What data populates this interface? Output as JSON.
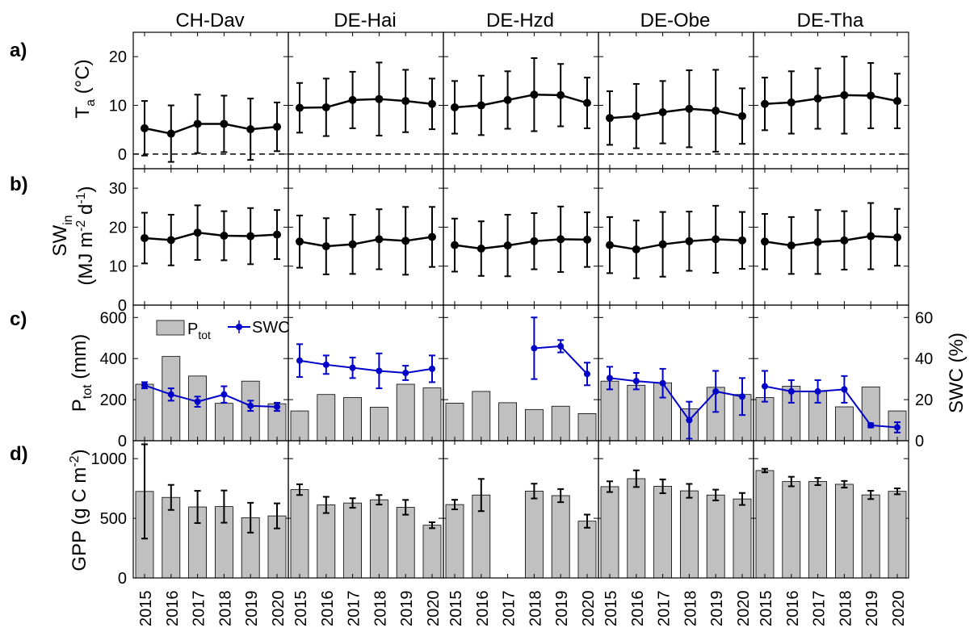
{
  "figure": {
    "sites": [
      "CH-Dav",
      "DE-Hai",
      "DE-Hzd",
      "DE-Obe",
      "DE-Tha"
    ],
    "years": [
      "2015",
      "2016",
      "2017",
      "2018",
      "2019",
      "2020"
    ],
    "row_labels": [
      "a)",
      "b)",
      "c)",
      "d)"
    ]
  },
  "chart_data": [
    {
      "type": "line",
      "panel": "a)",
      "ylabel": "T_a (°C)",
      "ylim": [
        -3,
        25
      ],
      "yticks": [
        0,
        10,
        20
      ],
      "reference_line": {
        "y": 0,
        "style": "dashed"
      },
      "x": [
        "2015",
        "2016",
        "2017",
        "2018",
        "2019",
        "2020"
      ],
      "series": [
        {
          "site": "CH-Dav",
          "values": [
            5.3,
            4.2,
            6.2,
            6.2,
            5.1,
            5.6
          ],
          "error": [
            5.6,
            5.8,
            6.0,
            5.8,
            6.3,
            5.0
          ]
        },
        {
          "site": "DE-Hai",
          "values": [
            9.5,
            9.6,
            11.1,
            11.3,
            10.9,
            10.3
          ],
          "error": [
            5.1,
            5.9,
            5.8,
            7.5,
            6.4,
            5.2
          ]
        },
        {
          "site": "DE-Hzd",
          "values": [
            9.6,
            10.0,
            11.1,
            12.2,
            12.1,
            10.5
          ],
          "error": [
            5.4,
            6.1,
            5.9,
            7.5,
            6.4,
            5.2
          ]
        },
        {
          "site": "DE-Obe",
          "values": [
            7.4,
            7.8,
            8.6,
            9.3,
            8.9,
            7.8
          ],
          "error": [
            5.5,
            6.6,
            6.4,
            7.9,
            8.4,
            5.7
          ]
        },
        {
          "site": "DE-Tha",
          "values": [
            10.3,
            10.6,
            11.4,
            12.1,
            12.0,
            10.9
          ],
          "error": [
            5.4,
            6.4,
            6.2,
            7.9,
            6.7,
            5.6
          ]
        }
      ]
    },
    {
      "type": "line",
      "panel": "b)",
      "ylabel": "SW_in (MJ m^-2 d^-1)",
      "ylim": [
        0,
        35
      ],
      "yticks": [
        0,
        10,
        20,
        30
      ],
      "x": [
        "2015",
        "2016",
        "2017",
        "2018",
        "2019",
        "2020"
      ],
      "series": [
        {
          "site": "CH-Dav",
          "values": [
            17.2,
            16.7,
            18.6,
            17.8,
            17.7,
            18.1
          ],
          "error": [
            6.5,
            6.5,
            7.0,
            6.3,
            7.2,
            6.3
          ]
        },
        {
          "site": "DE-Hai",
          "values": [
            16.3,
            15.1,
            15.6,
            16.9,
            16.5,
            17.5
          ],
          "error": [
            6.7,
            7.2,
            7.6,
            7.7,
            8.7,
            7.7
          ]
        },
        {
          "site": "DE-Hzd",
          "values": [
            15.4,
            14.5,
            15.3,
            16.4,
            16.9,
            16.8
          ],
          "error": [
            6.8,
            7.0,
            7.9,
            7.2,
            8.4,
            7.0
          ]
        },
        {
          "site": "DE-Obe",
          "values": [
            15.4,
            14.3,
            15.6,
            16.4,
            16.9,
            16.6
          ],
          "error": [
            7.2,
            7.4,
            8.3,
            7.6,
            8.6,
            7.3
          ]
        },
        {
          "site": "DE-Tha",
          "values": [
            16.3,
            15.3,
            16.2,
            16.6,
            17.7,
            17.4
          ],
          "error": [
            7.1,
            7.3,
            8.2,
            7.5,
            8.5,
            7.3
          ]
        }
      ]
    },
    {
      "type": "bar",
      "panel": "c)",
      "ylabel": "P_tot (mm)",
      "y2label": "SWC (%)",
      "ylim": [
        0,
        660
      ],
      "y2lim": [
        0,
        66
      ],
      "yticks": [
        0,
        200,
        400,
        600
      ],
      "y2ticks": [
        0,
        20,
        40,
        60
      ],
      "legend": {
        "placement": "top-left",
        "bar_label": "P_tot",
        "line_label": "SWC"
      },
      "x": [
        "2015",
        "2016",
        "2017",
        "2018",
        "2019",
        "2020"
      ],
      "colors": {
        "bars": "#c0c0c0",
        "swc": "#0000c8"
      },
      "series": [
        {
          "site": "CH-Dav",
          "p_tot": [
            275,
            410,
            315,
            182,
            290,
            180
          ],
          "swc": [
            27,
            22.5,
            19,
            22.5,
            17,
            16.5
          ],
          "swc_error": [
            1.5,
            3,
            2.5,
            4,
            2.5,
            2
          ]
        },
        {
          "site": "DE-Hai",
          "p_tot": [
            145,
            225,
            210,
            163,
            275,
            257
          ],
          "swc": [
            39,
            37,
            35.5,
            34,
            33,
            35
          ],
          "swc_error": [
            8,
            4.5,
            5,
            8.5,
            3.5,
            6.5
          ]
        },
        {
          "site": "DE-Hzd",
          "p_tot": [
            183,
            240,
            185,
            152,
            168,
            132
          ],
          "swc": [
            null,
            null,
            null,
            45,
            46,
            32.5
          ],
          "swc_error": [
            null,
            null,
            null,
            15,
            3,
            5.5
          ]
        },
        {
          "site": "DE-Obe",
          "p_tot": [
            290,
            270,
            282,
            155,
            260,
            225
          ],
          "swc": [
            30.5,
            29,
            28,
            10,
            24,
            21.5
          ],
          "swc_error": [
            5.5,
            4,
            7,
            9,
            10,
            9
          ]
        },
        {
          "site": "DE-Tha",
          "p_tot": [
            210,
            265,
            240,
            165,
            262,
            145
          ],
          "swc": [
            26.5,
            24,
            24,
            25,
            7.5,
            6.5
          ],
          "swc_error": [
            7.5,
            5.5,
            5.5,
            6.5,
            1,
            2.5
          ]
        }
      ]
    },
    {
      "type": "bar",
      "panel": "d)",
      "ylabel": "GPP (g C m^-2)",
      "ylim": [
        0,
        1150
      ],
      "yticks": [
        0,
        500,
        1000
      ],
      "x": [
        "2015",
        "2016",
        "2017",
        "2018",
        "2019",
        "2020"
      ],
      "colors": {
        "bars": "#c0c0c0"
      },
      "series": [
        {
          "site": "CH-Dav",
          "values": [
            725,
            675,
            595,
            598,
            505,
            520
          ],
          "error": [
            395,
            105,
            135,
            135,
            125,
            105
          ]
        },
        {
          "site": "DE-Hai",
          "values": [
            740,
            612,
            628,
            655,
            592,
            442
          ],
          "error": [
            45,
            68,
            40,
            40,
            62,
            25
          ]
        },
        {
          "site": "DE-Hzd",
          "values": [
            615,
            695,
            null,
            728,
            690,
            476
          ],
          "error": [
            40,
            135,
            null,
            62,
            55,
            55
          ]
        },
        {
          "site": "DE-Obe",
          "values": [
            765,
            832,
            768,
            730,
            695,
            662
          ],
          "error": [
            45,
            70,
            58,
            58,
            45,
            50
          ]
        },
        {
          "site": "DE-Tha",
          "values": [
            900,
            808,
            808,
            785,
            696,
            726
          ],
          "error": [
            15,
            40,
            30,
            28,
            35,
            25
          ]
        }
      ]
    }
  ]
}
